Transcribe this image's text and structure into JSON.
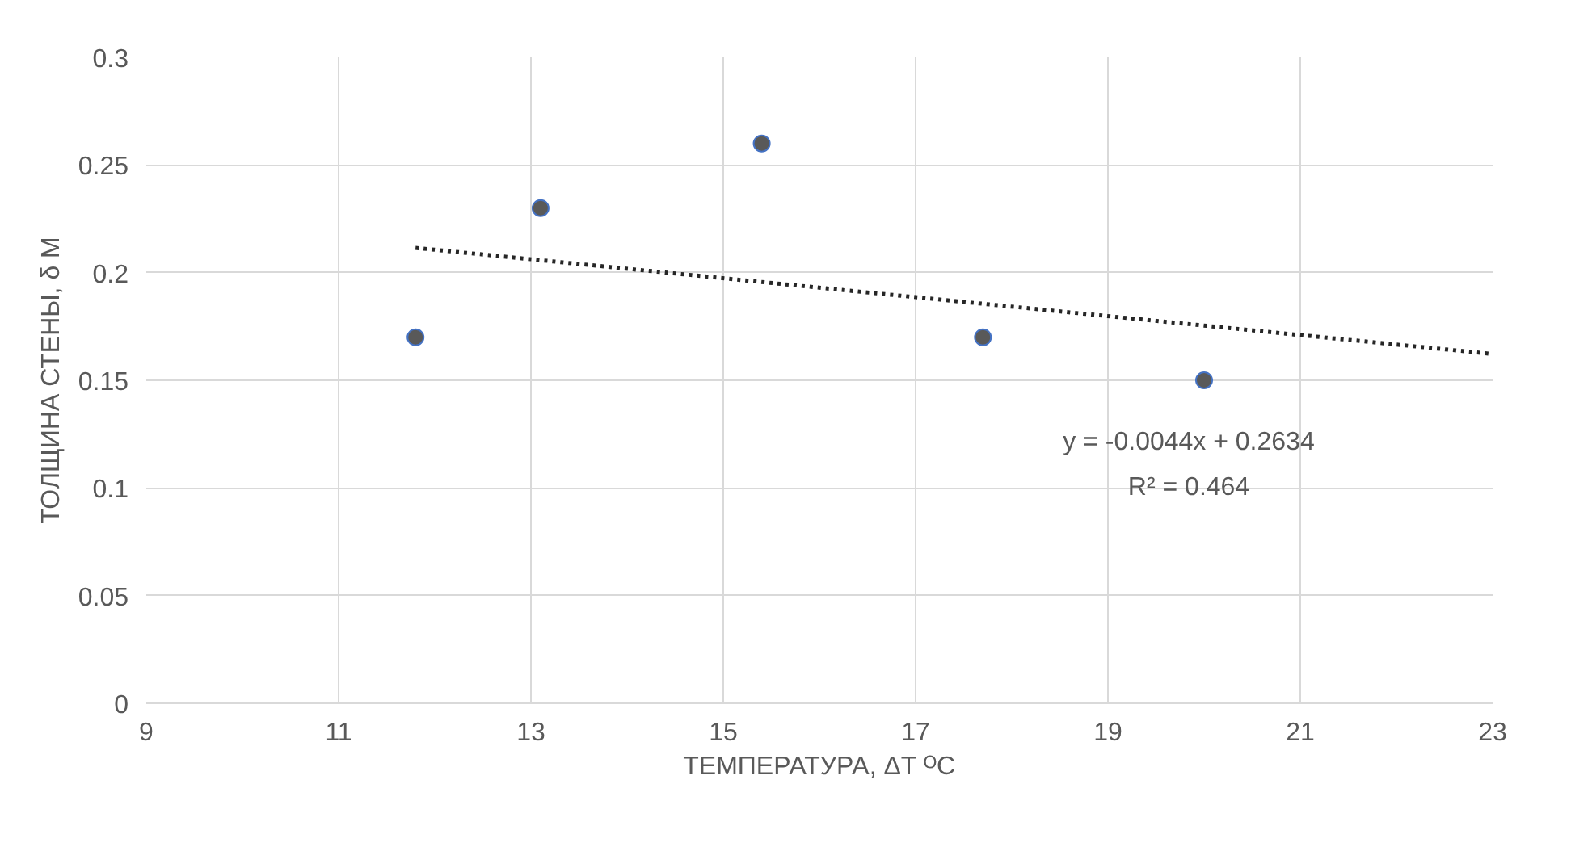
{
  "chart_data": {
    "type": "scatter",
    "xlabel": "ТЕМПЕРАТУРА, ΔT ᴼC",
    "ylabel": "ТОЛЩИНА СТЕНЫ, δ М",
    "series": [
      {
        "color": "#595959",
        "x": [
          11.8,
          13.1,
          15.4,
          17.7,
          20.0
        ],
        "values": [
          0.17,
          0.23,
          0.26,
          0.17,
          0.15
        ]
      },
      {
        "type": "line",
        "color": "#262626",
        "line_style": "dotted",
        "marker": "none",
        "x": [
          11.8,
          23
        ],
        "values": [
          0.2115,
          0.1622
        ]
      }
    ],
    "marker": "circle",
    "xlim": [
      9,
      23
    ],
    "xticks": [
      9,
      11,
      13,
      15,
      17,
      19,
      21,
      23
    ],
    "ylim": [
      0,
      0.3
    ],
    "yticks": [
      0,
      0.05,
      0.1,
      0.15,
      0.2,
      0.25,
      0.3
    ],
    "grid": true,
    "annotations": [
      "y = -0.0044x + 0.2634",
      "R² = 0.464"
    ]
  }
}
